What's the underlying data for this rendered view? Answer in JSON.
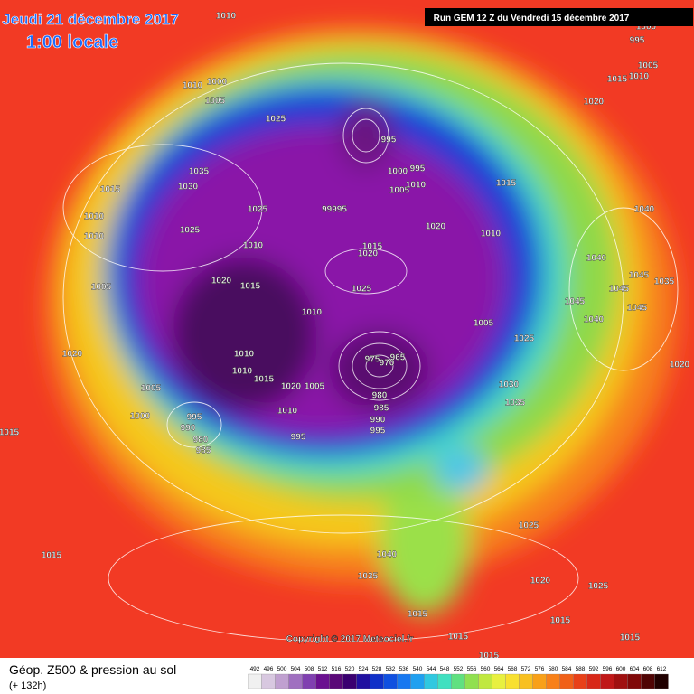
{
  "header": {
    "date": "Jeudi 21 décembre 2017",
    "time": "1:00 locale"
  },
  "run": "Run GEM 12 Z du Vendredi 15 décembre 2017",
  "copyright": "Copyright © 2017 Meteociel.fr",
  "legend": {
    "title": "Géop. Z500 & pression au sol",
    "lead": "(+ 132h)",
    "scale": [
      492,
      496,
      500,
      504,
      508,
      512,
      516,
      520,
      524,
      528,
      532,
      536,
      540,
      544,
      548,
      552,
      556,
      560,
      564,
      568,
      572,
      576,
      580,
      584,
      588,
      592,
      596,
      600,
      604,
      608,
      612
    ]
  },
  "isobar_labels": [
    1010,
    1000,
    995,
    1005,
    1015,
    1010,
    1010,
    1000,
    1005,
    1025,
    1020,
    1035,
    1030,
    1015,
    1025,
    1025,
    1010,
    1010,
    1010,
    995,
    1000,
    995,
    1005,
    1010,
    99995,
    1015,
    1020,
    1010,
    1040,
    1015,
    1020,
    1040,
    1025,
    1020,
    1015,
    1005,
    1045,
    1045,
    1035,
    1045,
    1045,
    1040,
    1010,
    1005,
    1025,
    1020,
    1010,
    1010,
    975,
    970,
    965,
    1015,
    1020,
    1005,
    1005,
    980,
    985,
    1030,
    1035,
    1020,
    1000,
    995,
    1010,
    990,
    995,
    990,
    995,
    980,
    985,
    1015,
    1025,
    1040,
    1015,
    1035,
    1020,
    1025,
    1015,
    1015,
    1015,
    1015,
    1015
  ]
}
